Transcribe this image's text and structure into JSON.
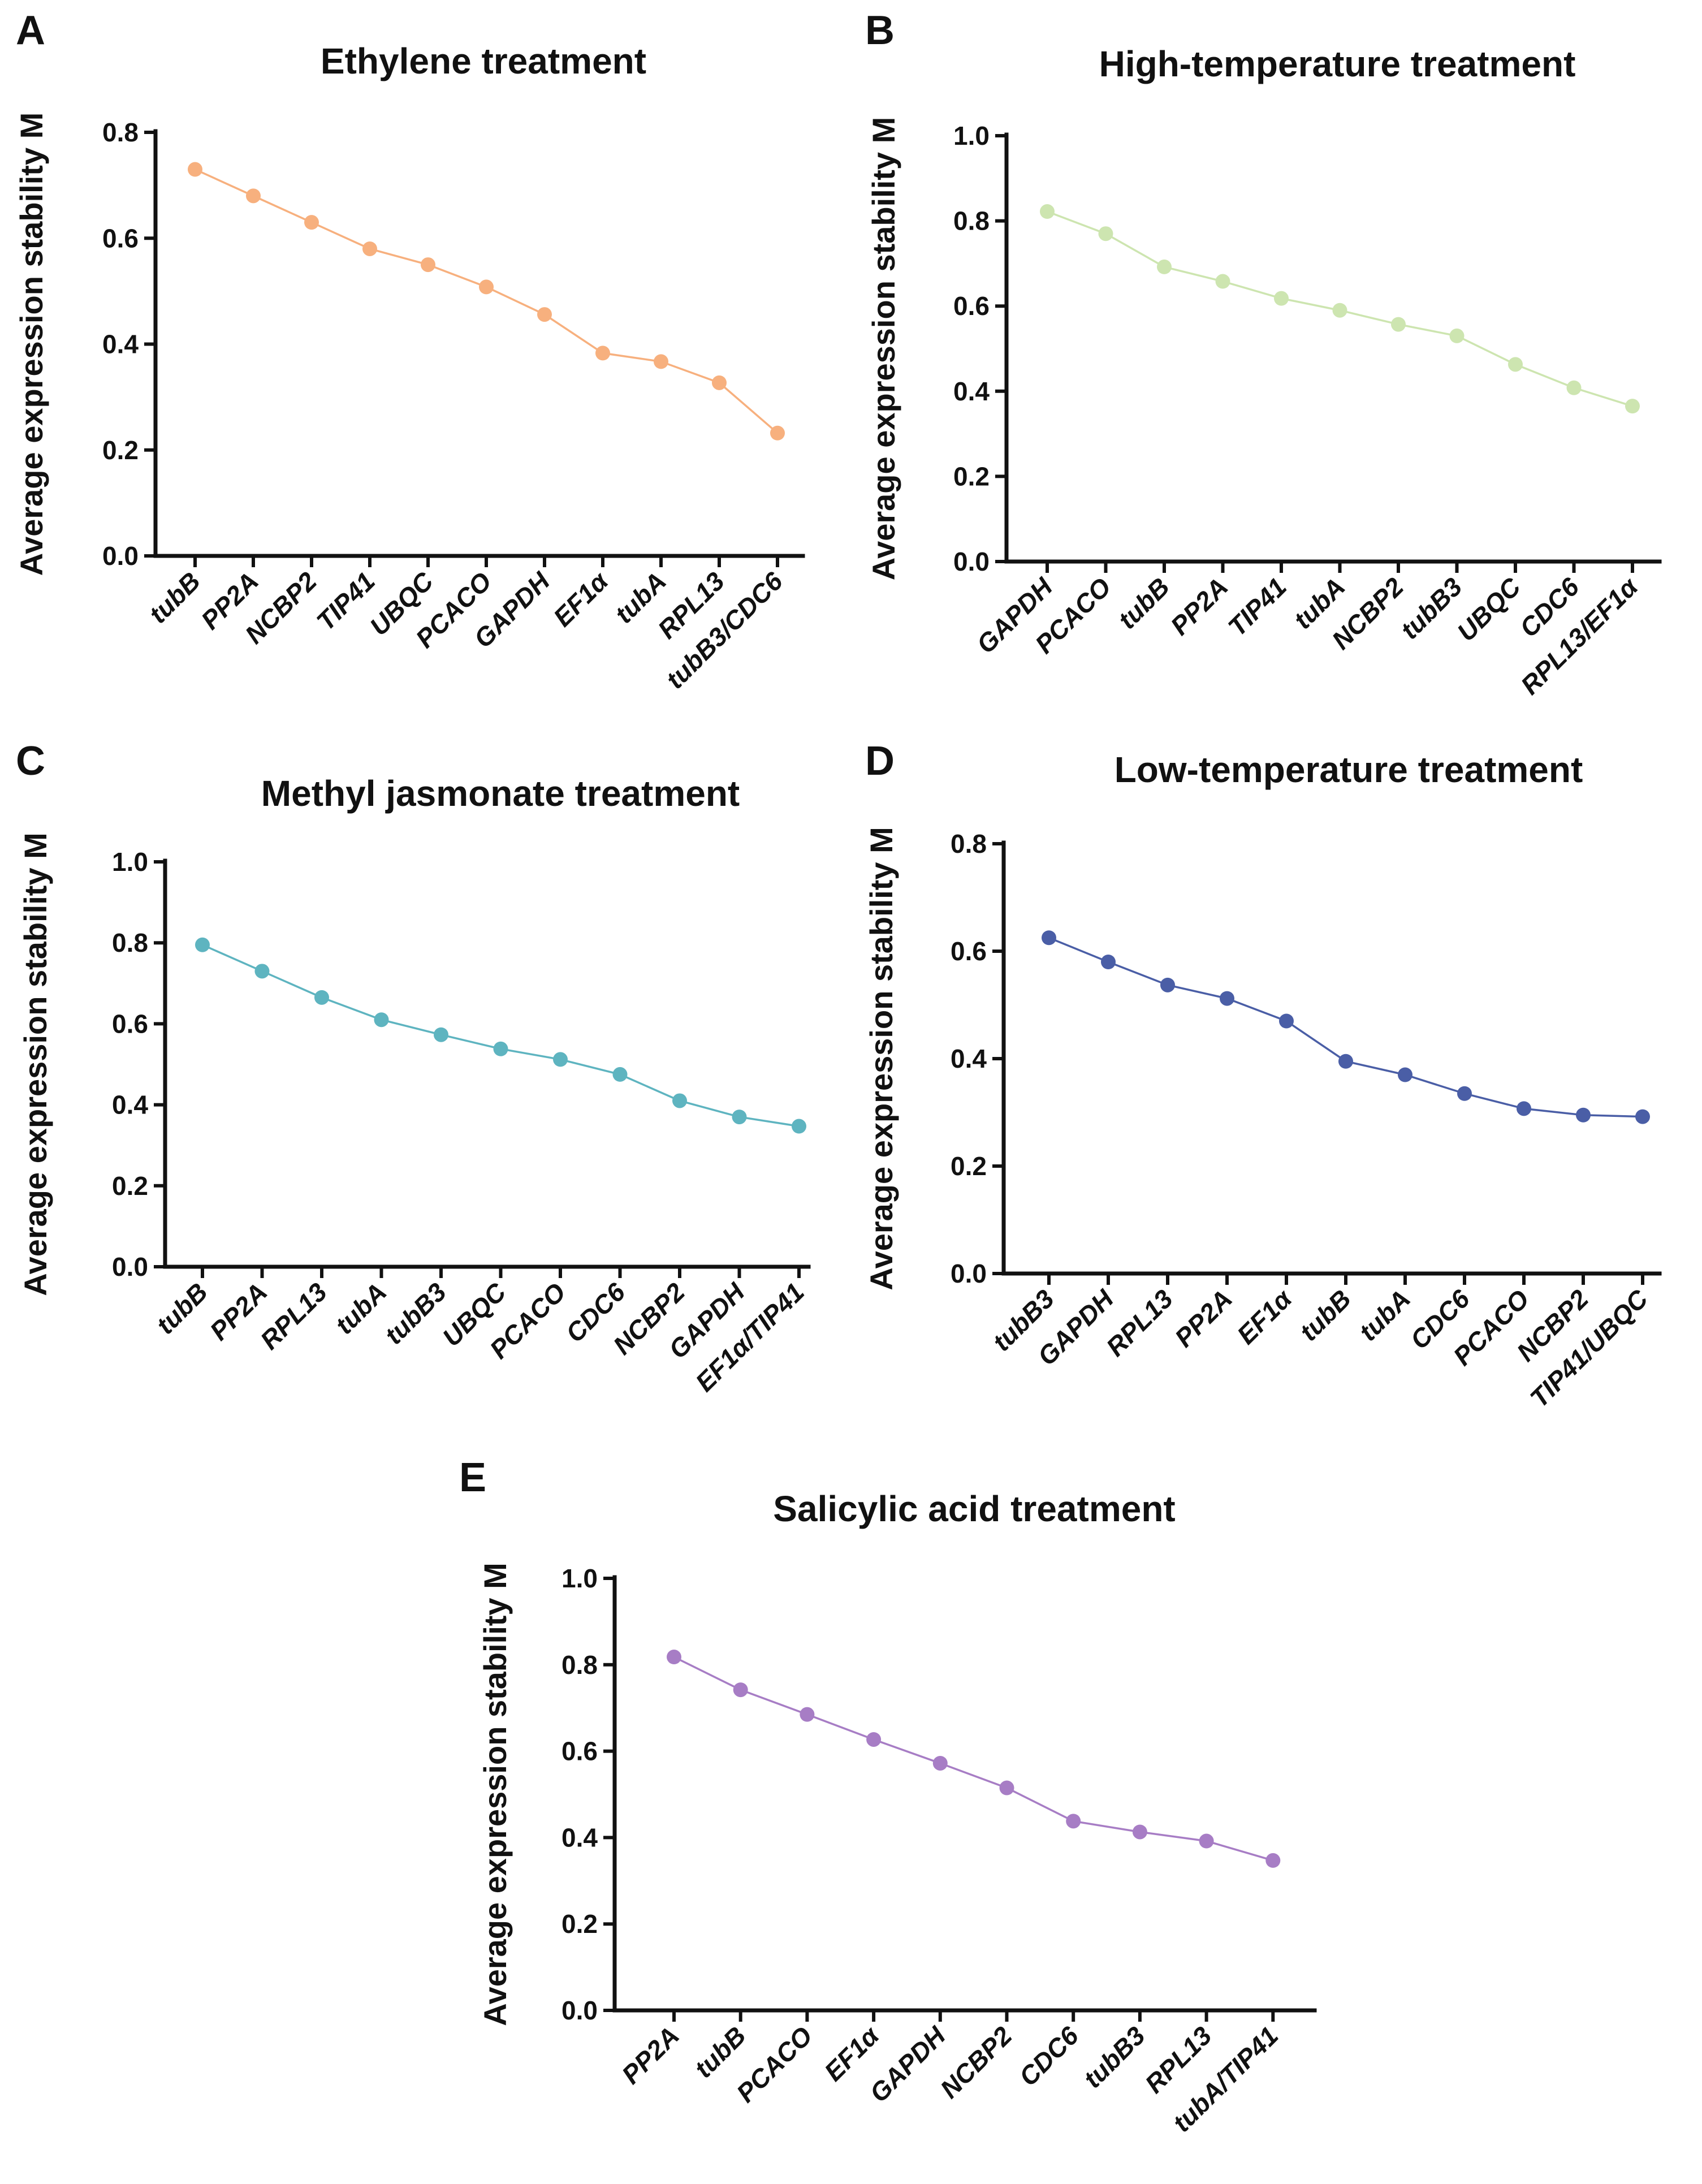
{
  "chart_data": [
    {
      "panel": "A",
      "type": "line",
      "title": "Ethylene treatment",
      "ylabel": "Average expression stability M",
      "xlabel": "",
      "ylim": [
        0,
        0.8
      ],
      "yticks": [
        "0.0",
        "0.2",
        "0.4",
        "0.6",
        "0.8"
      ],
      "color": "#F7B07E",
      "categories": [
        "tubB",
        "PP2A",
        "NCBP2",
        "TIP41",
        "UBQC",
        "PCACO",
        "GAPDH",
        "EF1α",
        "tubA",
        "RPL13",
        "tubB3/CDC6"
      ],
      "values": [
        0.73,
        0.68,
        0.63,
        0.58,
        0.55,
        0.508,
        0.456,
        0.383,
        0.367,
        0.327,
        0.232
      ]
    },
    {
      "panel": "B",
      "type": "line",
      "title": "High-temperature treatment",
      "ylabel": "Average expression stability M",
      "xlabel": "",
      "ylim": [
        0,
        1.0
      ],
      "yticks": [
        "0.0",
        "0.2",
        "0.4",
        "0.6",
        "0.8",
        "1.0"
      ],
      "color": "#CDE5B0",
      "categories": [
        "GAPDH",
        "PCACO",
        "tubB",
        "PP2A",
        "TIP41",
        "tubA",
        "NCBP2",
        "tubB3",
        "UBQC",
        "CDC6",
        "RPL13/EF1α"
      ],
      "values": [
        0.822,
        0.77,
        0.692,
        0.658,
        0.618,
        0.59,
        0.557,
        0.53,
        0.463,
        0.408,
        0.365
      ]
    },
    {
      "panel": "C",
      "type": "line",
      "title": "Methyl jasmonate treatment",
      "ylabel": "Average expression stability M",
      "xlabel": "",
      "ylim": [
        0,
        1.0
      ],
      "yticks": [
        "0.0",
        "0.2",
        "0.4",
        "0.6",
        "0.8",
        "1.0"
      ],
      "color": "#5EB4C0",
      "categories": [
        "tubB",
        "PP2A",
        "RPL13",
        "tubA",
        "tubB3",
        "UBQC",
        "PCACO",
        "CDC6",
        "NCBP2",
        "GAPDH",
        "EF1α/TIP41"
      ],
      "values": [
        0.795,
        0.73,
        0.665,
        0.61,
        0.573,
        0.538,
        0.512,
        0.475,
        0.41,
        0.37,
        0.347
      ]
    },
    {
      "panel": "D",
      "type": "line",
      "title": "Low-temperature treatment",
      "ylabel": "Average expression stability M",
      "xlabel": "",
      "ylim": [
        0,
        0.8
      ],
      "yticks": [
        "0.0",
        "0.2",
        "0.4",
        "0.6",
        "0.8"
      ],
      "color": "#4A5EA6",
      "categories": [
        "tubB3",
        "GAPDH",
        "RPL13",
        "PP2A",
        "EF1α",
        "tubB",
        "tubA",
        "CDC6",
        "PCACO",
        "NCBP2",
        "TIP41/UBQC"
      ],
      "values": [
        0.625,
        0.58,
        0.537,
        0.512,
        0.47,
        0.395,
        0.37,
        0.335,
        0.307,
        0.295,
        0.292
      ]
    },
    {
      "panel": "E",
      "type": "line",
      "title": "Salicylic acid treatment",
      "ylabel": "Average expression stability M",
      "xlabel": "",
      "ylim": [
        0,
        1.0
      ],
      "yticks": [
        "0.0",
        "0.2",
        "0.4",
        "0.6",
        "0.8",
        "1.0"
      ],
      "color": "#A77DC5",
      "categories": [
        "PP2A",
        "tubB",
        "PCACO",
        "EF1α",
        "GAPDH",
        "NCBP2",
        "CDC6",
        "tubB3",
        "RPL13",
        "tubA/TIP41"
      ],
      "values": [
        0.818,
        0.742,
        0.685,
        0.627,
        0.572,
        0.515,
        0.438,
        0.413,
        0.392,
        0.347
      ]
    }
  ]
}
